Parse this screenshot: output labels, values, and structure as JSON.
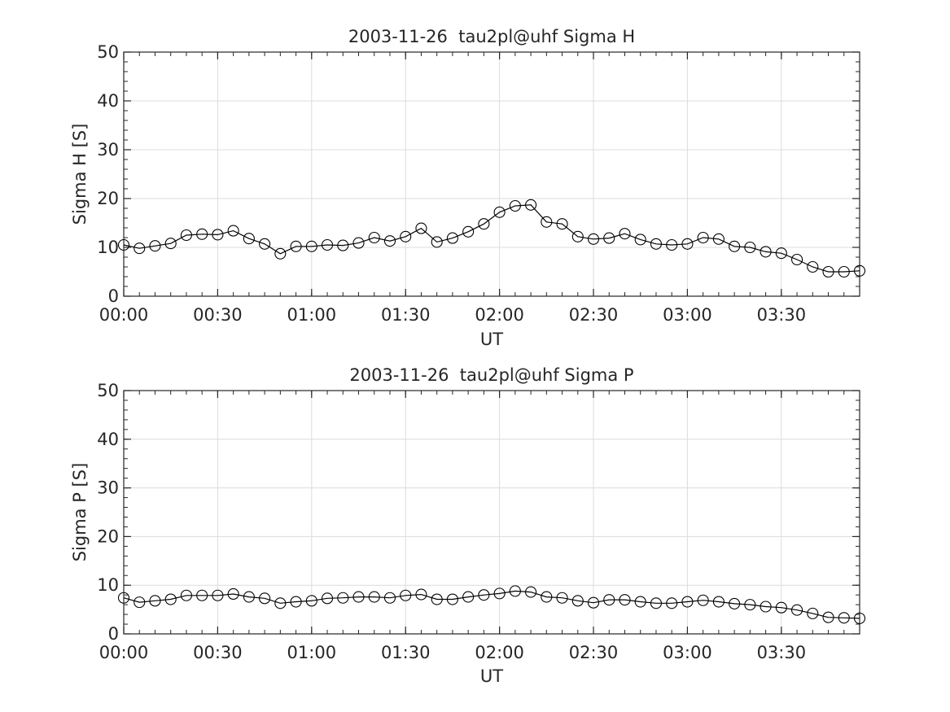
{
  "chart_data": [
    {
      "type": "line",
      "title": "2003-11-26  tau2pl@uhf Sigma H",
      "xlabel": "UT",
      "ylabel": "Sigma H [S]",
      "ylim": [
        0,
        50
      ],
      "xlim": [
        "00:00",
        "03:55"
      ],
      "grid": true,
      "marker": "open-circle",
      "color": "#000000",
      "yticks": [
        "0",
        "10",
        "20",
        "30",
        "40",
        "50"
      ],
      "xticks": [
        "00:00",
        "00:30",
        "01:00",
        "01:30",
        "02:00",
        "02:30",
        "03:00",
        "03:30"
      ],
      "x": [
        "00:00",
        "00:05",
        "00:10",
        "00:15",
        "00:20",
        "00:25",
        "00:30",
        "00:35",
        "00:40",
        "00:45",
        "00:50",
        "00:55",
        "01:00",
        "01:05",
        "01:10",
        "01:15",
        "01:20",
        "01:25",
        "01:30",
        "01:35",
        "01:40",
        "01:45",
        "01:50",
        "01:55",
        "02:00",
        "02:05",
        "02:10",
        "02:15",
        "02:20",
        "02:25",
        "02:30",
        "02:35",
        "02:40",
        "02:45",
        "02:50",
        "02:55",
        "03:00",
        "03:05",
        "03:10",
        "03:15",
        "03:20",
        "03:25",
        "03:30",
        "03:35",
        "03:40",
        "03:45",
        "03:50",
        "03:55"
      ],
      "values": [
        10.5,
        9.8,
        10.3,
        10.8,
        12.5,
        12.7,
        12.6,
        13.4,
        11.8,
        10.7,
        8.7,
        10.2,
        10.2,
        10.5,
        10.4,
        10.9,
        12.0,
        11.3,
        12.2,
        13.9,
        11.1,
        11.9,
        13.2,
        14.8,
        17.2,
        18.5,
        18.7,
        15.2,
        14.8,
        12.2,
        11.7,
        11.9,
        12.8,
        11.6,
        10.7,
        10.5,
        10.7,
        12.0,
        11.7,
        10.2,
        10.0,
        9.1,
        8.8,
        7.5,
        6.0,
        5.0,
        5.0,
        5.2
      ]
    },
    {
      "type": "line",
      "title": "2003-11-26  tau2pl@uhf Sigma P",
      "xlabel": "UT",
      "ylabel": "Sigma P [S]",
      "ylim": [
        0,
        50
      ],
      "xlim": [
        "00:00",
        "03:55"
      ],
      "grid": true,
      "marker": "open-circle",
      "color": "#000000",
      "yticks": [
        "0",
        "10",
        "20",
        "30",
        "40",
        "50"
      ],
      "xticks": [
        "00:00",
        "00:30",
        "01:00",
        "01:30",
        "02:00",
        "02:30",
        "03:00",
        "03:30"
      ],
      "x": [
        "00:00",
        "00:05",
        "00:10",
        "00:15",
        "00:20",
        "00:25",
        "00:30",
        "00:35",
        "00:40",
        "00:45",
        "00:50",
        "00:55",
        "01:00",
        "01:05",
        "01:10",
        "01:15",
        "01:20",
        "01:25",
        "01:30",
        "01:35",
        "01:40",
        "01:45",
        "01:50",
        "01:55",
        "02:00",
        "02:05",
        "02:10",
        "02:15",
        "02:20",
        "02:25",
        "02:30",
        "02:35",
        "02:40",
        "02:45",
        "02:50",
        "02:55",
        "03:00",
        "03:05",
        "03:10",
        "03:15",
        "03:20",
        "03:25",
        "03:30",
        "03:35",
        "03:40",
        "03:45",
        "03:50",
        "03:55"
      ],
      "values": [
        7.4,
        6.5,
        6.8,
        7.1,
        7.9,
        7.9,
        7.9,
        8.2,
        7.6,
        7.3,
        6.3,
        6.6,
        6.8,
        7.3,
        7.4,
        7.6,
        7.6,
        7.4,
        7.9,
        8.1,
        7.1,
        7.1,
        7.6,
        8.0,
        8.3,
        8.8,
        8.6,
        7.6,
        7.4,
        6.8,
        6.4,
        7.0,
        7.0,
        6.6,
        6.3,
        6.3,
        6.6,
        6.9,
        6.6,
        6.2,
        6.0,
        5.6,
        5.4,
        4.9,
        4.2,
        3.4,
        3.3,
        3.2
      ]
    }
  ]
}
